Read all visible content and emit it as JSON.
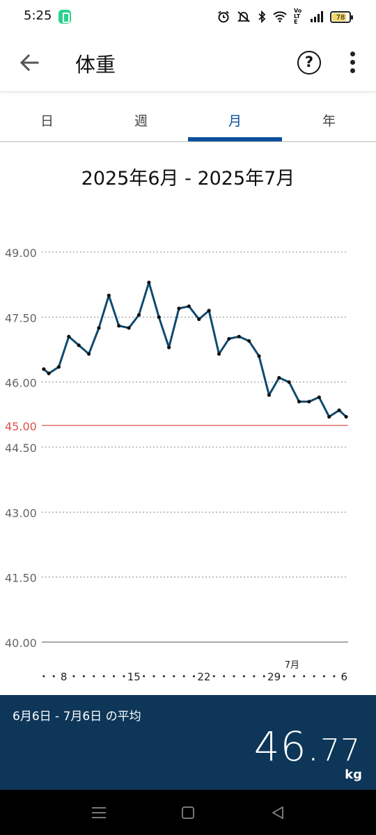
{
  "status_bar": {
    "time": "5:25",
    "battery_level": "78",
    "network_label": "Vo LTE",
    "icons": [
      "alarm-icon",
      "mute-icon",
      "bluetooth-icon",
      "wifi-icon",
      "volte-icon",
      "signal-icon",
      "battery-icon"
    ]
  },
  "app_bar": {
    "title": "体重",
    "back_icon": "arrow-left-icon",
    "help_label": "?",
    "more_icon": "more-vert-icon"
  },
  "tabs": [
    {
      "label": "日",
      "active": false
    },
    {
      "label": "週",
      "active": false
    },
    {
      "label": "月",
      "active": true
    },
    {
      "label": "年",
      "active": false
    }
  ],
  "accent_color": "#0b4f9c",
  "range_title": "2025年6月 - 2025年7月",
  "chart_data": {
    "type": "line",
    "yticks": [
      "49.00",
      "47.50",
      "46.00",
      "45.00",
      "44.50",
      "43.00",
      "41.50",
      "40.00"
    ],
    "ylim": [
      40.0,
      49.0
    ],
    "target_line": {
      "value": 45.0,
      "label": "45.00",
      "color": "#d9534f"
    },
    "line_color": "#0e4a6e",
    "x_tick_labels": [
      {
        "day": 8,
        "label": "8"
      },
      {
        "day": 15,
        "label": "15"
      },
      {
        "day": 22,
        "label": "22"
      },
      {
        "day": 29,
        "label": "29"
      },
      {
        "day": 36,
        "label": "6"
      }
    ],
    "month_marker": {
      "day": 31,
      "label": "7月"
    },
    "x_dot_days": [
      6,
      7,
      9,
      10,
      11,
      12,
      13,
      14,
      16,
      17,
      18,
      19,
      20,
      21,
      23,
      24,
      25,
      26,
      27,
      28,
      30,
      31,
      32,
      33,
      34,
      35
    ],
    "xlim": [
      5.8,
      36.4
    ],
    "series": [
      {
        "days": [
          6,
          6.5,
          7.5,
          8.5,
          9.5,
          10.5,
          11.5,
          12.5,
          13.5,
          14.5,
          15.5,
          16.5,
          17.5,
          18.5,
          19.5,
          20.5,
          21.5,
          22.5,
          23.5,
          24.5,
          25.5,
          26.5,
          27.5,
          28.5,
          29.5,
          30.5,
          31.5,
          32.5,
          33.5,
          34.5,
          35.5,
          36.2
        ],
        "values": [
          46.3,
          46.2,
          46.35,
          47.05,
          46.85,
          46.65,
          47.25,
          48.0,
          47.3,
          47.25,
          47.55,
          48.3,
          47.5,
          46.8,
          47.7,
          47.75,
          47.45,
          47.65,
          46.65,
          47.0,
          47.05,
          46.95,
          46.6,
          45.7,
          46.1,
          46.0,
          45.55,
          45.55,
          45.65,
          45.2,
          45.35,
          45.2
        ]
      }
    ]
  },
  "summary": {
    "label": "6月6日 - 7月6日 の平均",
    "value_int": "46",
    "value_dot": ".",
    "value_dec": "77",
    "unit": "kg"
  },
  "nav_bar": {
    "icons": [
      "menu-icon",
      "home-square-icon",
      "back-triangle-icon"
    ]
  }
}
